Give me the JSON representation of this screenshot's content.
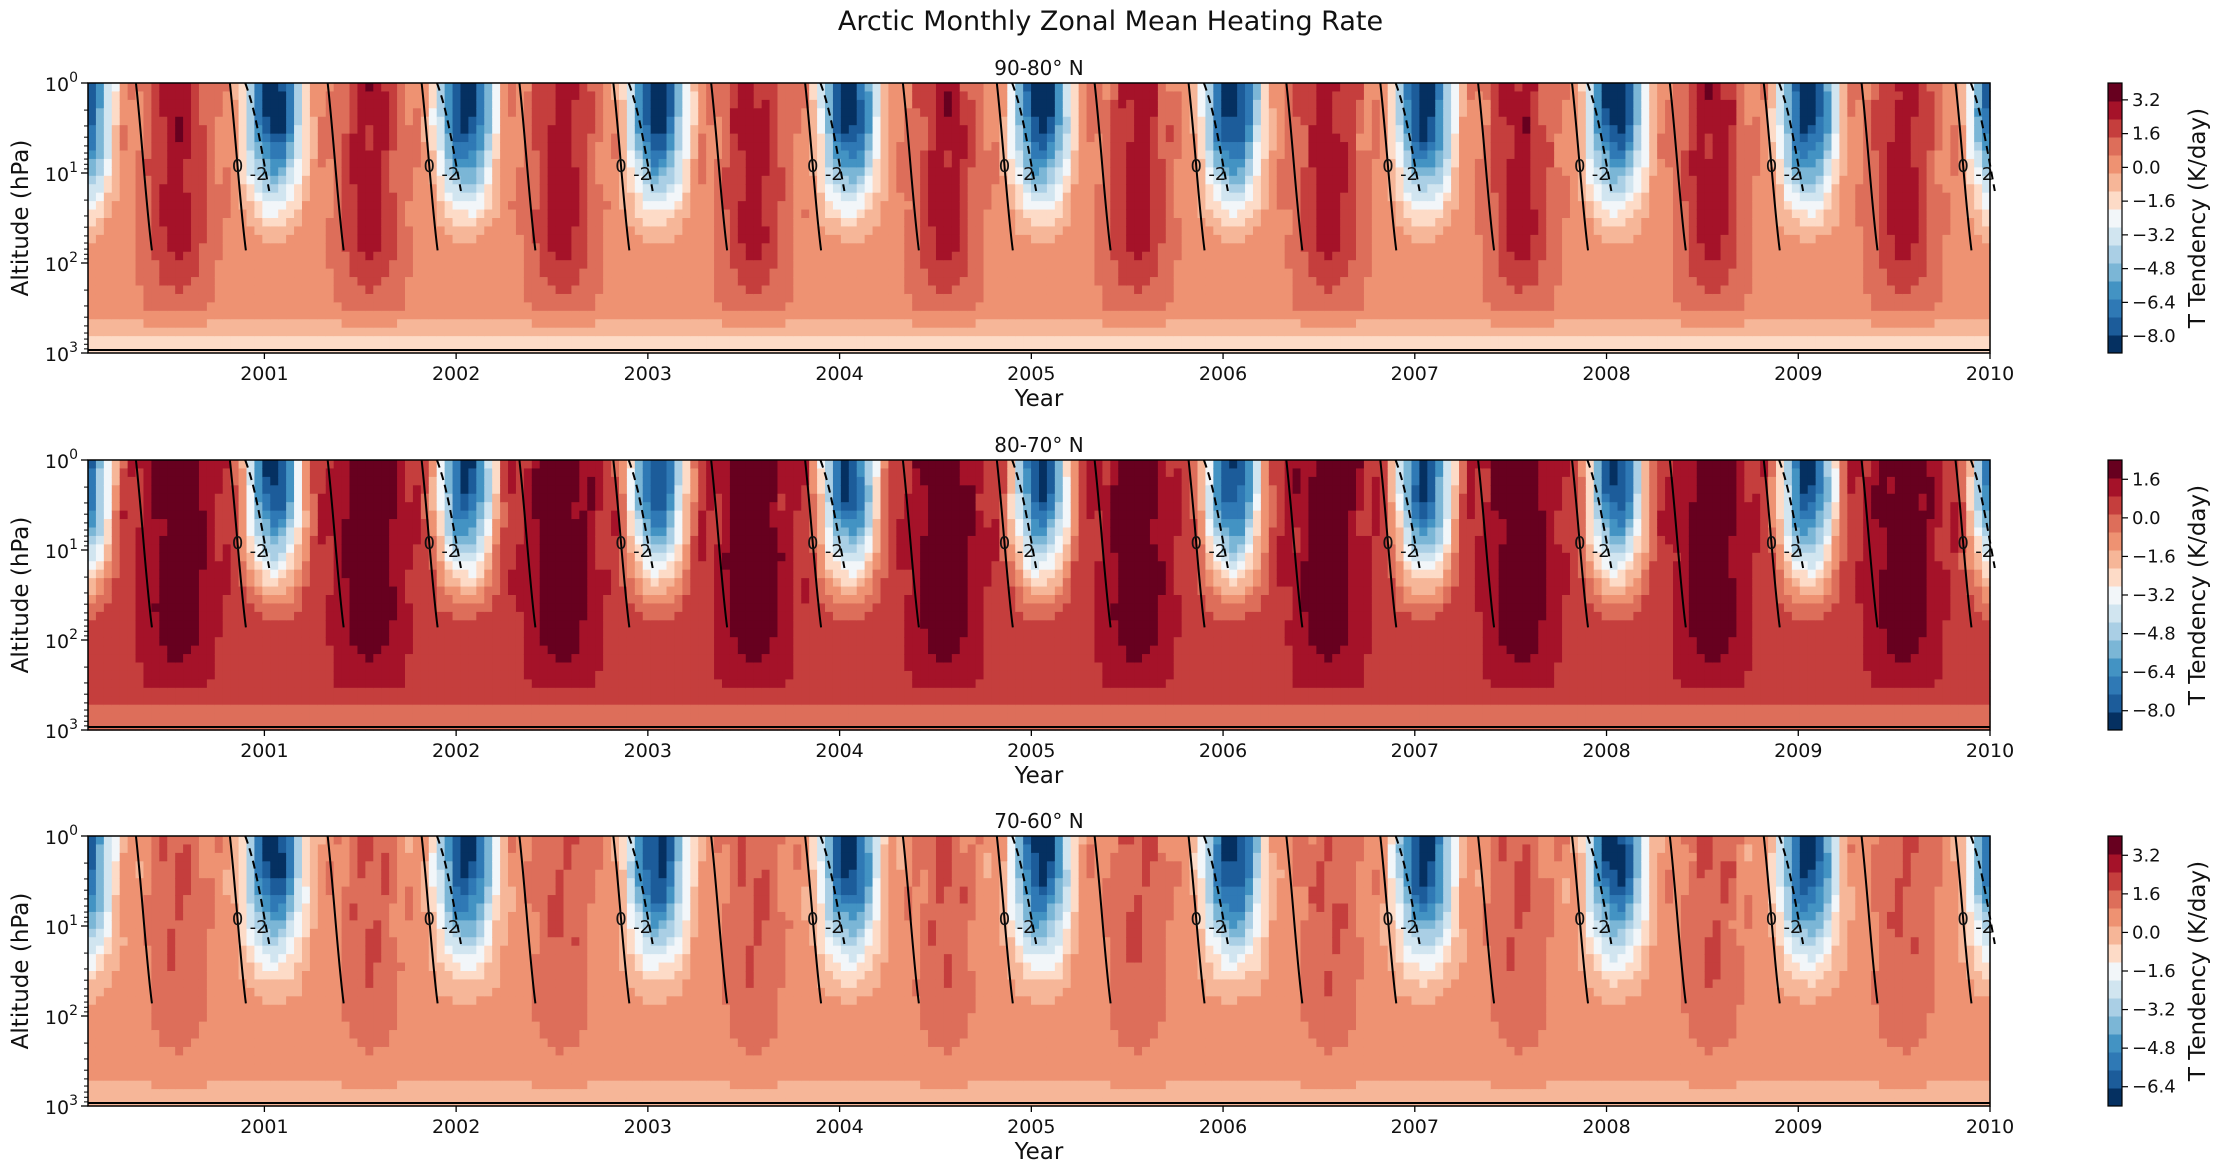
{
  "figure": {
    "title": "Arctic Monthly Zonal Mean Heating Rate"
  },
  "chart_data": [
    {
      "type": "heatmap",
      "title": "90-80° N",
      "xlabel": "Year",
      "ylabel": "Altitude (hPa)",
      "y_scale": "log",
      "y_inverted": true,
      "xlim": [
        2000.08,
        2010.0
      ],
      "ylim": [
        1000,
        1
      ],
      "x_ticks": [
        "2001",
        "2002",
        "2003",
        "2004",
        "2005",
        "2006",
        "2007",
        "2008",
        "2009",
        "2010"
      ],
      "y_ticks": [
        {
          "value": 1,
          "base": "10",
          "exp": "0"
        },
        {
          "value": 10,
          "base": "10",
          "exp": "1"
        },
        {
          "value": 100,
          "base": "10",
          "exp": "2"
        },
        {
          "value": 1000,
          "base": "10",
          "exp": "3"
        }
      ],
      "contour_labels": [
        "0",
        "-2"
      ],
      "colorbar": {
        "label": "T Tendency (K/day)",
        "min": -8.8,
        "max": 4.0,
        "tick_values": [
          3.2,
          1.6,
          0.0,
          -1.6,
          -3.2,
          -4.8,
          -6.4,
          -8.0
        ],
        "tick_labels": [
          "3.2",
          "1.6",
          "0.0",
          "−1.6",
          "−3.2",
          "−4.8",
          "−6.4",
          "−8.0"
        ]
      },
      "colors": [
        "#053061",
        "#1c5c9a",
        "#2f79b5",
        "#4393c3",
        "#7bb6d6",
        "#aacfe5",
        "#d1e5f0",
        "#f2f6f9",
        "#fddbc7",
        "#f6b698",
        "#ee9272",
        "#dd6e5a",
        "#c53e3d",
        "#a51229",
        "#67001f"
      ],
      "pattern": {
        "summer_peak": 0.8,
        "winter_trough": -1.0,
        "background": 0.45,
        "lower_layer": 0.15
      }
    },
    {
      "type": "heatmap",
      "title": "80-70° N",
      "xlabel": "Year",
      "ylabel": "Altitude (hPa)",
      "y_scale": "log",
      "y_inverted": true,
      "xlim": [
        2000.08,
        2010.0
      ],
      "ylim": [
        1000,
        1
      ],
      "x_ticks": [
        "2001",
        "2002",
        "2003",
        "2004",
        "2005",
        "2006",
        "2007",
        "2008",
        "2009",
        "2010"
      ],
      "y_ticks": [
        {
          "value": 1,
          "base": "10",
          "exp": "0"
        },
        {
          "value": 10,
          "base": "10",
          "exp": "1"
        },
        {
          "value": 100,
          "base": "10",
          "exp": "2"
        },
        {
          "value": 1000,
          "base": "10",
          "exp": "3"
        }
      ],
      "contour_labels": [
        "0",
        "-2"
      ],
      "colorbar": {
        "label": "T Tendency (K/day)",
        "min": -8.8,
        "max": 2.4,
        "tick_values": [
          1.6,
          0.0,
          -1.6,
          -3.2,
          -4.8,
          -6.4,
          -8.0
        ],
        "tick_labels": [
          "1.6",
          "0.0",
          "−1.6",
          "−3.2",
          "−4.8",
          "−6.4",
          "−8.0"
        ]
      },
      "colors": [
        "#053061",
        "#1c5c9a",
        "#2f79b5",
        "#4393c3",
        "#7bb6d6",
        "#aacfe5",
        "#d1e5f0",
        "#f2f6f9",
        "#fddbc7",
        "#f6b698",
        "#ee9272",
        "#dd6e5a",
        "#c53e3d",
        "#a51229",
        "#67001f"
      ],
      "pattern": {
        "summer_peak": 1.0,
        "winter_trough": -0.9,
        "background": 0.72,
        "lower_layer": 0.5
      }
    },
    {
      "type": "heatmap",
      "title": "70-60° N",
      "xlabel": "Year",
      "ylabel": "Altitude (hPa)",
      "y_scale": "log",
      "y_inverted": true,
      "xlim": [
        2000.08,
        2010.0
      ],
      "ylim": [
        1000,
        1
      ],
      "x_ticks": [
        "2001",
        "2002",
        "2003",
        "2004",
        "2005",
        "2006",
        "2007",
        "2008",
        "2009",
        "2010"
      ],
      "y_ticks": [
        {
          "value": 1,
          "base": "10",
          "exp": "0"
        },
        {
          "value": 10,
          "base": "10",
          "exp": "1"
        },
        {
          "value": 100,
          "base": "10",
          "exp": "2"
        },
        {
          "value": 1000,
          "base": "10",
          "exp": "3"
        }
      ],
      "contour_labels": [
        "0",
        "-2"
      ],
      "colorbar": {
        "label": "T Tendency (K/day)",
        "min": -7.2,
        "max": 4.0,
        "tick_values": [
          3.2,
          1.6,
          0.0,
          -1.6,
          -3.2,
          -4.8,
          -6.4
        ],
        "tick_labels": [
          "3.2",
          "1.6",
          "0.0",
          "−1.6",
          "−3.2",
          "−4.8",
          "−6.4"
        ]
      },
      "colors": [
        "#053061",
        "#1c5c9a",
        "#2f79b5",
        "#4393c3",
        "#7bb6d6",
        "#aacfe5",
        "#d1e5f0",
        "#f2f6f9",
        "#fddbc7",
        "#f6b698",
        "#ee9272",
        "#dd6e5a",
        "#c53e3d",
        "#a51229",
        "#67001f"
      ],
      "pattern": {
        "summer_peak": 0.6,
        "winter_trough": -0.95,
        "background": 0.4,
        "lower_layer": 0.3
      }
    }
  ]
}
